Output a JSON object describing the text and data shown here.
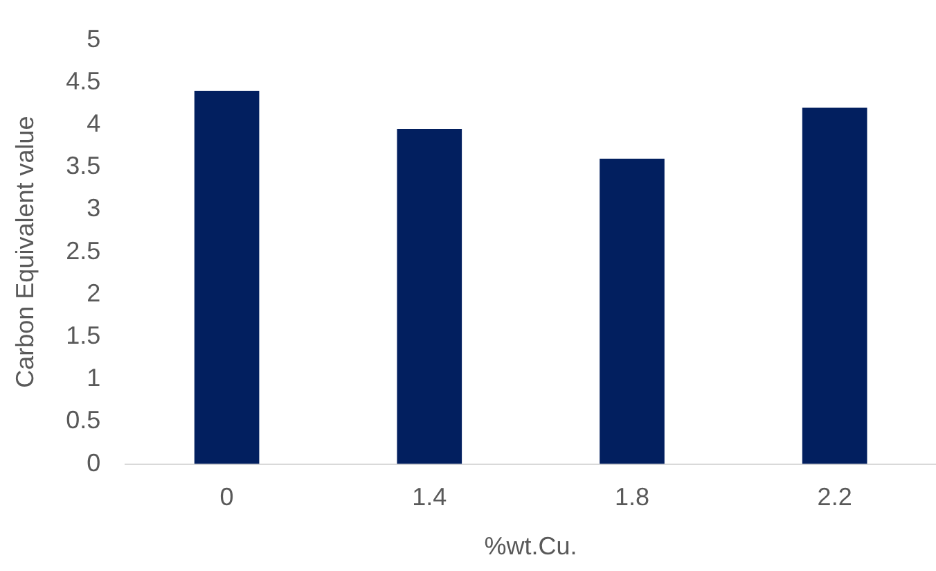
{
  "chart_data": {
    "type": "bar",
    "xlabel": "%wt.Cu.",
    "ylabel": "Carbon Equivalent value",
    "categories": [
      "0",
      "1.4",
      "1.8",
      "2.2"
    ],
    "values": [
      4.4,
      3.95,
      3.6,
      4.2
    ],
    "color": "#021f5f",
    "ylim": [
      0,
      5
    ],
    "yticks": [
      0,
      0.5,
      1,
      1.5,
      2,
      2.5,
      3,
      3.5,
      4,
      4.5,
      5
    ],
    "grid": false,
    "legend": false
  }
}
